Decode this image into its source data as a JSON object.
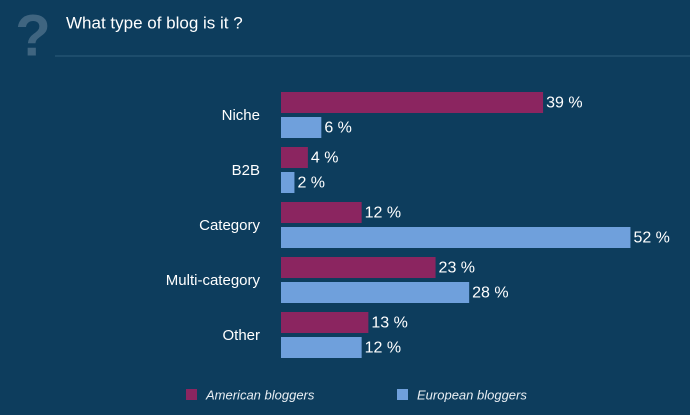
{
  "chart_data": {
    "type": "bar",
    "orientation": "horizontal",
    "title": "What type of blog is it ?",
    "categories": [
      "Niche",
      "B2B",
      "Category",
      "Multi-category",
      "Other"
    ],
    "series": [
      {
        "name": "American bloggers",
        "color": "#8b2560",
        "values": [
          39,
          4,
          12,
          23,
          13
        ],
        "value_labels": [
          "39 %",
          "4 %",
          "12 %",
          "23 %",
          "13 %"
        ]
      },
      {
        "name": "European bloggers",
        "color": "#6fa0dc",
        "values": [
          6,
          2,
          52,
          28,
          12
        ],
        "value_labels": [
          "6 %",
          "2 %",
          "52 %",
          "28 %",
          "12 %"
        ]
      }
    ]
  }
}
